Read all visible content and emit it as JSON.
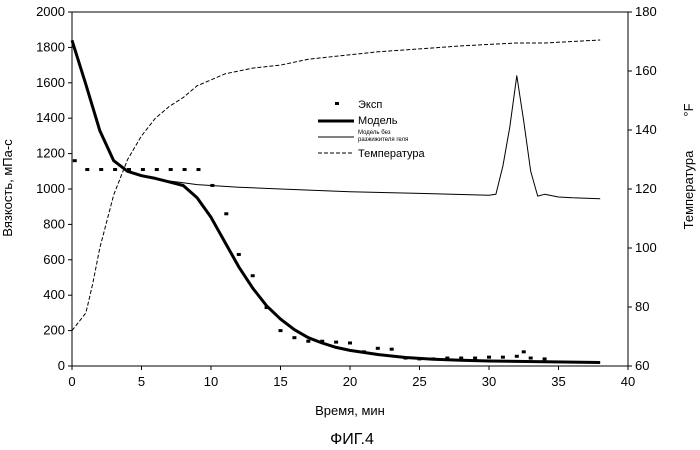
{
  "chart_data": {
    "type": "line",
    "caption": "ФИГ.4",
    "xlabel": "Время, мин",
    "ylabel": "Вязкость, мПа-с",
    "y2label": "Температура",
    "y2unit": "°F",
    "xlim": [
      0,
      40
    ],
    "ylim": [
      0,
      2000
    ],
    "y2lim": [
      60,
      180
    ],
    "xticks": [
      "0",
      "5",
      "10",
      "15",
      "20",
      "25",
      "30",
      "35",
      "40"
    ],
    "yticks": [
      "0",
      "200",
      "400",
      "600",
      "800",
      "1000",
      "1200",
      "1400",
      "1600",
      "1800",
      "2000"
    ],
    "y2ticks": [
      "60",
      "80",
      "100",
      "120",
      "140",
      "160",
      "180"
    ],
    "grid": false,
    "legend_position": "center-right",
    "legend": [
      "Эксп",
      "Модель",
      "Модель без разжижителя геля",
      "Температура"
    ],
    "series": [
      {
        "name": "Эксп",
        "style": "markers",
        "axis": "left",
        "x": [
          0.2,
          1.1,
          2.1,
          3.1,
          4.1,
          5.1,
          6.1,
          7.1,
          8.1,
          9.1,
          10.1,
          11.1,
          12.0,
          13.0,
          14.0,
          15.0,
          16.0,
          17.0,
          18.0,
          19.0,
          20.0,
          21.0,
          22.0,
          23.0,
          24.0,
          25.0,
          26.0,
          27.0,
          28.0,
          29.0,
          30.0,
          31.0,
          32.0,
          32.5,
          33.0,
          34.0
        ],
        "y": [
          1160,
          1110,
          1110,
          1110,
          1110,
          1110,
          1110,
          1110,
          1110,
          1110,
          1020,
          860,
          630,
          510,
          330,
          200,
          160,
          140,
          140,
          135,
          130,
          80,
          100,
          95,
          45,
          40,
          40,
          45,
          45,
          45,
          50,
          50,
          55,
          80,
          45,
          40
        ]
      },
      {
        "name": "Модель",
        "style": "thick-line",
        "axis": "left",
        "x": [
          0,
          1,
          2,
          3,
          4,
          5,
          6,
          7,
          8,
          9,
          10,
          11,
          12,
          13,
          14,
          15,
          16,
          17,
          18,
          19,
          20,
          22,
          24,
          26,
          28,
          30,
          32,
          34,
          36,
          38
        ],
        "y": [
          1840,
          1590,
          1330,
          1160,
          1100,
          1075,
          1060,
          1040,
          1020,
          950,
          840,
          700,
          560,
          440,
          340,
          265,
          205,
          160,
          130,
          105,
          88,
          65,
          48,
          38,
          32,
          28,
          26,
          24,
          22,
          20
        ]
      },
      {
        "name": "Модель без разжижителя геля",
        "style": "thin-line",
        "axis": "left",
        "x": [
          0,
          1,
          2,
          3,
          4,
          5,
          6,
          7,
          8,
          9,
          10,
          12,
          15,
          20,
          25,
          30,
          30.5,
          31,
          31.5,
          32,
          32.5,
          33,
          33.5,
          34,
          35,
          36,
          38
        ],
        "y": [
          1840,
          1590,
          1330,
          1160,
          1100,
          1075,
          1060,
          1045,
          1035,
          1025,
          1020,
          1010,
          1000,
          985,
          975,
          965,
          970,
          1130,
          1350,
          1640,
          1380,
          1100,
          960,
          970,
          955,
          950,
          945
        ]
      },
      {
        "name": "Температура",
        "style": "dashed-line",
        "axis": "right",
        "x": [
          0,
          1,
          1.5,
          2,
          3,
          4,
          5,
          6,
          7,
          8,
          9,
          10,
          11,
          12,
          13,
          15,
          17,
          20,
          22,
          25,
          28,
          30,
          32,
          34,
          36,
          38
        ],
        "y": [
          72,
          78,
          88,
          100,
          118,
          130,
          138,
          144,
          148,
          151,
          155,
          157,
          159,
          160,
          161,
          162,
          164,
          165.5,
          166.5,
          167.5,
          168.5,
          169,
          169.5,
          169.5,
          170,
          170.5
        ]
      }
    ]
  }
}
